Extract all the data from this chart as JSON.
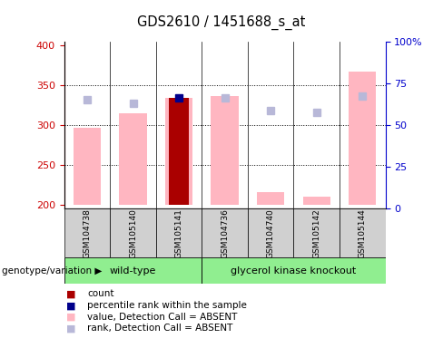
{
  "title": "GDS2610 / 1451688_s_at",
  "samples": [
    "GSM104738",
    "GSM105140",
    "GSM105141",
    "GSM104736",
    "GSM104740",
    "GSM105142",
    "GSM105144"
  ],
  "wildtype_count": 3,
  "knockout_count": 4,
  "ylim_left": [
    195,
    405
  ],
  "ylim_right": [
    0,
    100
  ],
  "pink_bar_tops": [
    297,
    315,
    335,
    337,
    216,
    210,
    368
  ],
  "lavender_marker_y": [
    332,
    328,
    null,
    335,
    319,
    316,
    337
  ],
  "dark_red_bar_top": [
    null,
    null,
    335,
    null,
    null,
    null,
    null
  ],
  "blue_marker_y": [
    null,
    null,
    335,
    null,
    null,
    null,
    null
  ],
  "bar_base": 200,
  "group_label_wildtype": "wild-type",
  "group_label_knockout": "glycerol kinase knockout",
  "group_label_prefix": "genotype/variation",
  "legend_items": [
    {
      "label": "count",
      "color": "#AA0000"
    },
    {
      "label": "percentile rank within the sample",
      "color": "#00008B"
    },
    {
      "label": "value, Detection Call = ABSENT",
      "color": "#FFB6C1"
    },
    {
      "label": "rank, Detection Call = ABSENT",
      "color": "#B8B8D8"
    }
  ],
  "left_axis_color": "#CC0000",
  "right_axis_color": "#0000CC",
  "grid_yticks": [
    200,
    250,
    300,
    350,
    400
  ],
  "right_yticks": [
    0,
    25,
    50,
    75,
    100
  ],
  "background_color": "#ffffff"
}
